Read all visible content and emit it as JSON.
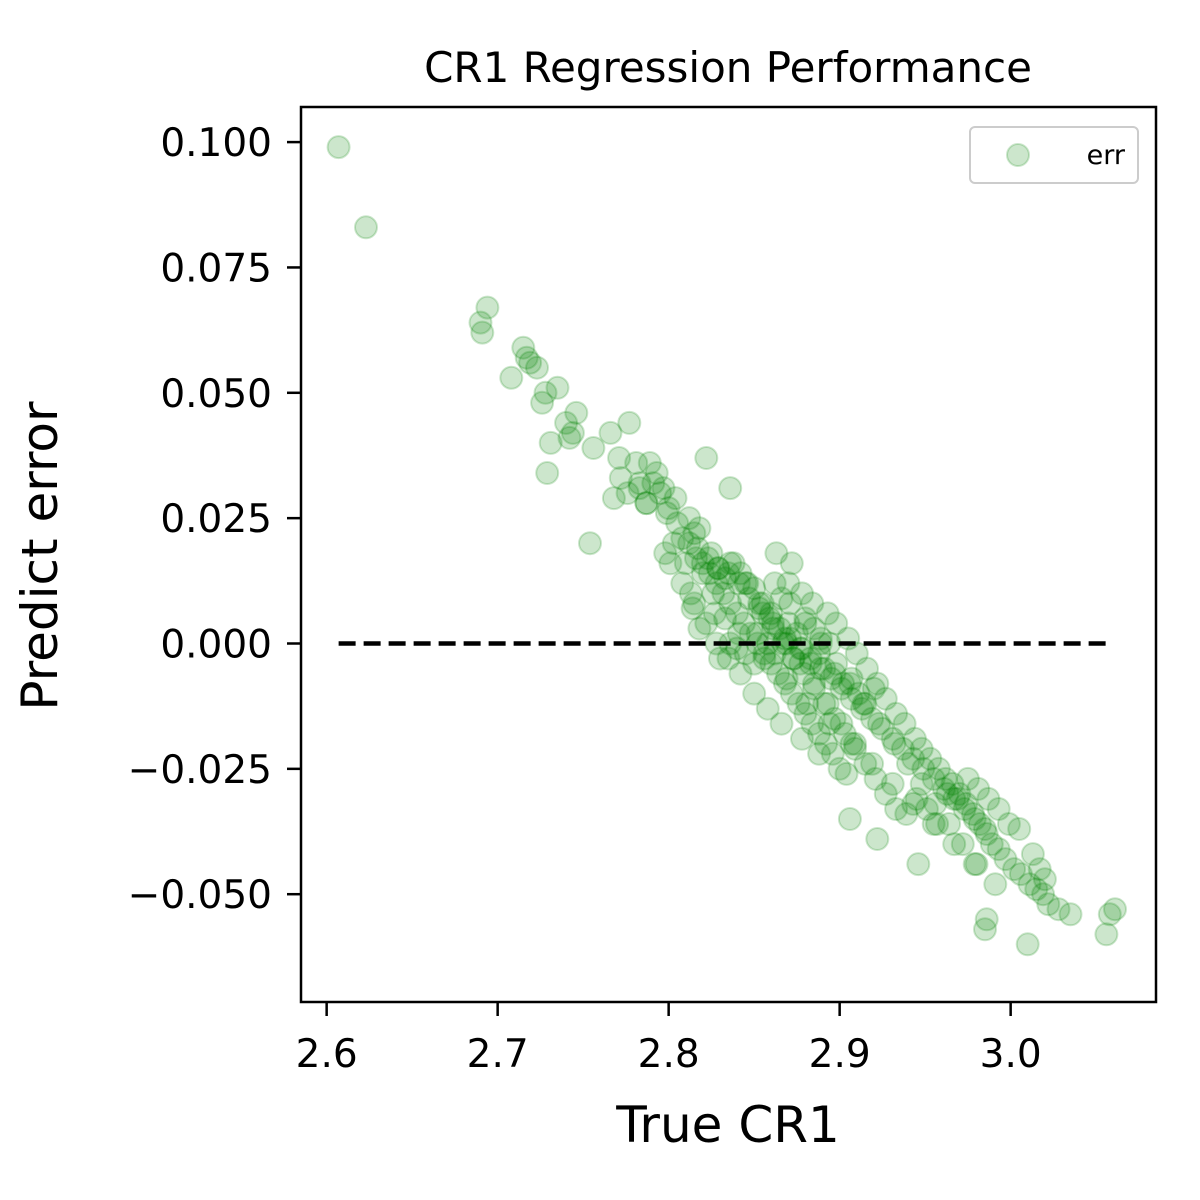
{
  "chart_data": {
    "type": "scatter",
    "title": "CR1 Regression Performance",
    "xlabel": "True CR1",
    "ylabel": "Predict error",
    "xlim": [
      2.585,
      3.085
    ],
    "ylim": [
      -0.0715,
      0.107
    ],
    "xticks": [
      "2.6",
      "2.7",
      "2.8",
      "2.9",
      "3.0"
    ],
    "xtick_values": [
      2.6,
      2.7,
      2.8,
      2.9,
      3.0
    ],
    "yticks": [
      "0.100",
      "0.075",
      "0.050",
      "0.025",
      "0.000",
      "−0.025",
      "−0.050"
    ],
    "ytick_values": [
      0.1,
      0.075,
      0.05,
      0.025,
      0.0,
      -0.025,
      -0.05
    ],
    "grid": false,
    "legend": {
      "position": "top-right",
      "entries": [
        "err"
      ]
    },
    "colors": {
      "marker": "#008000",
      "reference_line": "#000000"
    },
    "reference_line": {
      "style": "dashed",
      "x": [
        2.607,
        3.06
      ],
      "y": [
        0.0,
        0.0
      ]
    },
    "series": [
      {
        "name": "err",
        "marker_alpha": 0.2,
        "x": [
          2.607,
          2.623,
          2.69,
          2.691,
          2.694,
          2.708,
          2.715,
          2.717,
          2.719,
          2.723,
          2.726,
          2.728,
          2.735,
          2.731,
          2.729,
          2.74,
          2.744,
          2.746,
          2.742,
          2.756,
          2.766,
          2.771,
          2.777,
          2.781,
          2.772,
          2.754,
          2.768,
          2.776,
          2.783,
          2.789,
          2.793,
          2.797,
          2.787,
          2.8,
          2.805,
          2.812,
          2.815,
          2.822,
          2.836,
          2.818,
          2.808,
          2.803,
          2.798,
          2.81,
          2.816,
          2.82,
          2.825,
          2.829,
          2.833,
          2.838,
          2.842,
          2.846,
          2.826,
          2.814,
          2.818,
          2.833,
          2.85,
          2.855,
          2.86,
          2.866,
          2.87,
          2.875,
          2.88,
          2.885,
          2.889,
          2.894,
          2.852,
          2.858,
          2.862,
          2.868,
          2.873,
          2.878,
          2.883,
          2.888,
          2.891,
          2.897,
          2.902,
          2.907,
          2.911,
          2.915,
          2.92,
          2.85,
          2.845,
          2.84,
          2.836,
          2.83,
          2.863,
          2.872,
          2.87,
          2.878,
          2.884,
          2.893,
          2.898,
          2.905,
          2.91,
          2.916,
          2.922,
          2.927,
          2.933,
          2.938,
          2.944,
          2.948,
          2.953,
          2.958,
          2.962,
          2.966,
          2.97,
          2.974,
          2.978,
          2.982,
          2.986,
          2.989,
          2.993,
          2.997,
          3.002,
          3.006,
          3.011,
          3.015,
          3.019,
          3.022,
          3.028,
          3.035,
          3.056,
          3.058,
          3.061,
          3.01,
          2.986,
          2.985,
          2.946,
          2.922,
          2.906,
          2.9,
          2.888,
          2.878,
          2.866,
          2.858,
          2.85,
          2.842,
          2.835,
          2.828,
          2.822,
          2.815,
          2.808,
          2.801,
          2.813,
          2.827,
          2.841,
          2.856,
          2.869,
          2.881,
          2.894,
          2.907,
          2.919,
          2.931,
          2.943,
          2.955,
          2.967,
          2.979,
          2.991,
          2.862,
          2.871,
          2.88,
          2.889,
          2.898,
          2.906,
          2.914,
          2.923,
          2.932,
          2.94,
          2.948,
          2.956,
          2.964,
          2.972,
          2.98,
          2.836,
          2.845,
          2.853,
          2.861,
          2.869,
          2.877,
          2.885,
          2.893,
          2.901,
          2.909,
          2.824,
          2.832,
          2.84,
          2.848,
          2.856,
          2.864,
          2.872,
          2.88,
          2.888,
          2.896,
          2.904,
          2.812,
          2.82,
          2.828,
          2.836,
          2.844,
          2.852,
          2.86,
          2.868,
          2.876,
          2.884,
          2.892,
          2.855,
          2.861,
          2.867,
          2.873,
          2.879,
          2.885,
          2.891,
          2.897,
          2.903,
          2.909,
          2.915,
          2.921,
          2.927,
          2.933,
          2.939,
          2.945,
          2.951,
          2.957,
          2.963,
          2.969,
          2.975,
          2.981,
          2.987,
          2.993,
          2.999,
          3.005,
          3.013,
          3.017,
          3.02,
          2.804,
          2.799,
          2.795,
          2.791,
          2.787,
          2.783,
          2.817,
          2.823,
          2.829,
          2.835,
          2.841,
          2.847,
          2.853,
          2.859,
          2.865,
          2.871,
          2.877,
          2.883,
          2.889,
          2.895,
          2.901,
          2.907,
          2.913,
          2.919,
          2.925,
          2.931,
          2.937,
          2.943,
          2.949,
          2.955,
          2.961,
          2.967,
          2.973,
          2.979,
          2.985
        ],
        "y": [
          0.099,
          0.083,
          0.064,
          0.062,
          0.067,
          0.053,
          0.059,
          0.057,
          0.056,
          0.055,
          0.048,
          0.05,
          0.051,
          0.04,
          0.034,
          0.044,
          0.042,
          0.046,
          0.041,
          0.039,
          0.042,
          0.037,
          0.044,
          0.036,
          0.033,
          0.02,
          0.029,
          0.03,
          0.032,
          0.036,
          0.034,
          0.031,
          0.028,
          0.027,
          0.024,
          0.025,
          0.022,
          0.037,
          0.031,
          0.023,
          0.021,
          0.02,
          0.018,
          0.016,
          0.017,
          0.014,
          0.018,
          0.015,
          0.013,
          0.016,
          0.014,
          0.012,
          0.01,
          0.007,
          0.003,
          0.005,
          0.011,
          0.008,
          0.006,
          0.009,
          0.004,
          0.002,
          0.005,
          0.003,
          0.001,
          0.0,
          0.002,
          0.0,
          -0.002,
          0.001,
          -0.003,
          -0.001,
          -0.004,
          -0.002,
          -0.005,
          -0.006,
          -0.008,
          -0.007,
          -0.01,
          -0.012,
          -0.009,
          -0.004,
          -0.002,
          -0.001,
          0.0,
          -0.003,
          0.018,
          0.016,
          0.012,
          0.01,
          0.008,
          0.006,
          0.004,
          0.001,
          -0.002,
          -0.005,
          -0.008,
          -0.011,
          -0.014,
          -0.016,
          -0.019,
          -0.021,
          -0.023,
          -0.025,
          -0.027,
          -0.028,
          -0.03,
          -0.032,
          -0.034,
          -0.036,
          -0.038,
          -0.04,
          -0.041,
          -0.043,
          -0.045,
          -0.046,
          -0.048,
          -0.049,
          -0.05,
          -0.052,
          -0.053,
          -0.054,
          -0.058,
          -0.054,
          -0.053,
          -0.06,
          -0.055,
          -0.057,
          -0.044,
          -0.039,
          -0.035,
          -0.025,
          -0.022,
          -0.019,
          -0.016,
          -0.013,
          -0.01,
          -0.006,
          -0.003,
          0.0,
          0.004,
          0.008,
          0.012,
          0.016,
          0.01,
          0.006,
          0.002,
          -0.003,
          -0.007,
          -0.012,
          -0.016,
          -0.02,
          -0.024,
          -0.028,
          -0.032,
          -0.036,
          -0.04,
          -0.044,
          -0.048,
          0.012,
          0.008,
          0.004,
          0.0,
          -0.004,
          -0.008,
          -0.012,
          -0.016,
          -0.02,
          -0.024,
          -0.028,
          -0.032,
          -0.036,
          -0.04,
          -0.044,
          0.016,
          0.012,
          0.008,
          0.004,
          0.0,
          -0.004,
          -0.008,
          -0.012,
          -0.016,
          -0.02,
          0.014,
          0.01,
          0.006,
          0.002,
          -0.002,
          -0.006,
          -0.01,
          -0.014,
          -0.018,
          -0.022,
          -0.026,
          0.02,
          0.016,
          0.012,
          0.008,
          0.004,
          0.0,
          -0.004,
          -0.008,
          -0.012,
          -0.016,
          -0.02,
          0.006,
          0.003,
          0.0,
          -0.003,
          -0.006,
          -0.009,
          -0.012,
          -0.015,
          -0.018,
          -0.021,
          -0.024,
          -0.027,
          -0.03,
          -0.033,
          -0.034,
          -0.031,
          -0.033,
          -0.036,
          -0.03,
          -0.031,
          -0.027,
          -0.029,
          -0.031,
          -0.033,
          -0.036,
          -0.037,
          -0.042,
          -0.045,
          -0.047,
          0.029,
          0.026,
          0.03,
          0.032,
          0.028,
          0.031,
          0.019,
          0.017,
          0.015,
          0.014,
          0.012,
          0.009,
          0.007,
          0.005,
          0.003,
          0.001,
          -0.001,
          -0.003,
          -0.005,
          -0.007,
          -0.009,
          -0.011,
          -0.013,
          -0.015,
          -0.017,
          -0.019,
          -0.021,
          -0.023,
          -0.025,
          -0.027,
          -0.029,
          -0.031,
          -0.033,
          -0.035,
          -0.037
        ]
      }
    ]
  }
}
